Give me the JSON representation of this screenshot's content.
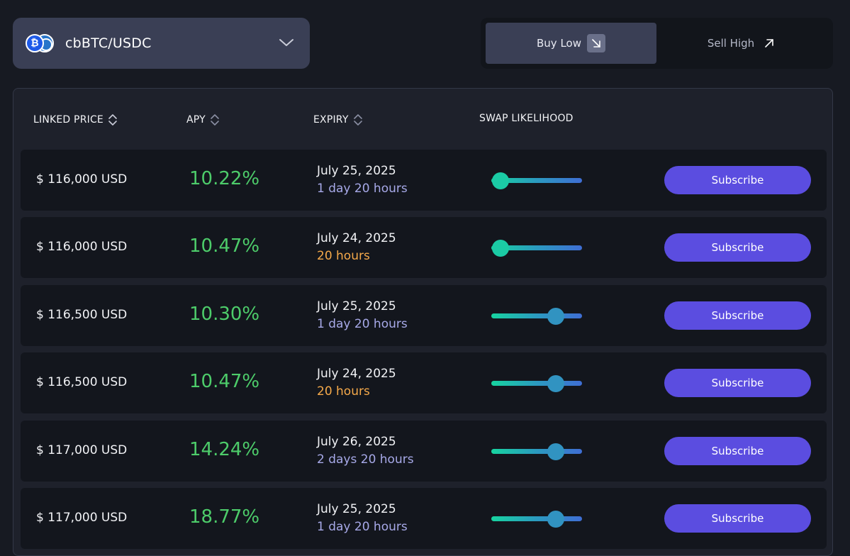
{
  "pair_selector": {
    "label": "cbBTC/USDC",
    "icons": [
      "bitcoin-icon",
      "usdc-icon",
      "chevron-down-icon"
    ]
  },
  "side_toggle": {
    "buy": {
      "label": "Buy Low",
      "icon": "arrow-down-right-icon",
      "selected": true
    },
    "sell": {
      "label": "Sell High",
      "icon": "arrow-up-right-icon",
      "selected": false
    }
  },
  "table": {
    "headers": {
      "linked_price": "LINKED PRICE",
      "apy": "APY",
      "expiry": "EXPIRY",
      "swap_likelihood": "SWAP LIKELIHOOD"
    },
    "rows": [
      {
        "price": "$ 116,000 USD",
        "apy": "10.22%",
        "date": "July 25, 2025",
        "remaining": "1 day 20 hours",
        "soon": false,
        "likelihood": 0.1,
        "action": "Subscribe"
      },
      {
        "price": "$ 116,000 USD",
        "apy": "10.47%",
        "date": "July 24, 2025",
        "remaining": "20 hours",
        "soon": true,
        "likelihood": 0.1,
        "action": "Subscribe"
      },
      {
        "price": "$ 116,500 USD",
        "apy": "10.30%",
        "date": "July 25, 2025",
        "remaining": "1 day 20 hours",
        "soon": false,
        "likelihood": 0.71,
        "action": "Subscribe"
      },
      {
        "price": "$ 116,500 USD",
        "apy": "10.47%",
        "date": "July 24, 2025",
        "remaining": "20 hours",
        "soon": true,
        "likelihood": 0.71,
        "action": "Subscribe"
      },
      {
        "price": "$ 117,000 USD",
        "apy": "14.24%",
        "date": "July 26, 2025",
        "remaining": "2 days 20 hours",
        "soon": false,
        "likelihood": 0.71,
        "action": "Subscribe"
      },
      {
        "price": "$ 117,000 USD",
        "apy": "18.77%",
        "date": "July 25, 2025",
        "remaining": "1 day 20 hours",
        "soon": false,
        "likelihood": 0.71,
        "action": "Subscribe"
      }
    ]
  },
  "colors": {
    "apy_green": "#4dcc6a",
    "remaining_normal": "#a7a9e8",
    "remaining_soon": "#f5a94a",
    "subscribe_button": "#5b4de0",
    "slider_low": "#17d4a0",
    "slider_high": "#3f6ed4"
  }
}
